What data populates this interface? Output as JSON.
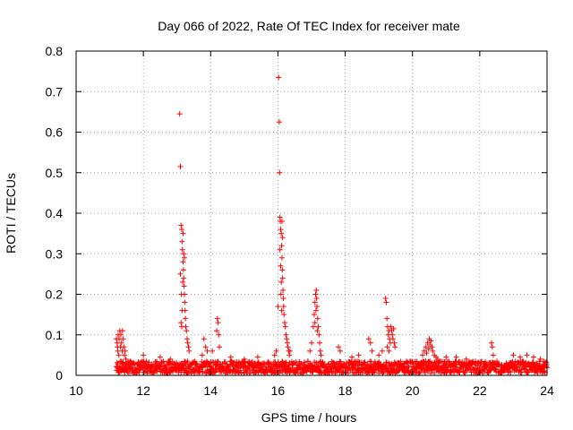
{
  "chart_data": {
    "type": "scatter",
    "title": "Day 066 of 2022, Rate Of TEC Index for receiver mate",
    "xlabel": "GPS time / hours",
    "ylabel": "ROTI / TECUs",
    "xlim": [
      10,
      24
    ],
    "ylim": [
      0,
      0.8
    ],
    "xticks": [
      10,
      12,
      14,
      16,
      18,
      20,
      22,
      24
    ],
    "yticks": [
      0,
      0.1,
      0.2,
      0.3,
      0.4,
      0.5,
      0.6,
      0.7,
      0.8
    ],
    "xtick_labels": [
      "10",
      "12",
      "14",
      "16",
      "18",
      "20",
      "22",
      "24"
    ],
    "ytick_labels": [
      "0",
      "0.1",
      "0.2",
      "0.3",
      "0.4",
      "0.5",
      "0.6",
      "0.7",
      "0.8"
    ],
    "grid": true,
    "marker": "+",
    "series_color": "#ff0000",
    "baseline": {
      "x_start": 11.2,
      "x_end": 24.0,
      "count": 1400,
      "y_min": 0.005,
      "y_max": 0.035
    },
    "points": [
      [
        11.2,
        0.09
      ],
      [
        11.22,
        0.08
      ],
      [
        11.23,
        0.07
      ],
      [
        11.24,
        0.06
      ],
      [
        11.25,
        0.1
      ],
      [
        11.27,
        0.05
      ],
      [
        11.28,
        0.09
      ],
      [
        11.3,
        0.11
      ],
      [
        11.32,
        0.07
      ],
      [
        11.33,
        0.1
      ],
      [
        11.35,
        0.08
      ],
      [
        11.37,
        0.06
      ],
      [
        11.38,
        0.11
      ],
      [
        11.4,
        0.09
      ],
      [
        11.42,
        0.07
      ],
      [
        11.44,
        0.05
      ],
      [
        11.46,
        0.06
      ],
      [
        11.48,
        0.04
      ],
      [
        13.08,
        0.645
      ],
      [
        13.1,
        0.515
      ],
      [
        13.12,
        0.37
      ],
      [
        13.14,
        0.36
      ],
      [
        13.15,
        0.33
      ],
      [
        13.16,
        0.31
      ],
      [
        13.18,
        0.28
      ],
      [
        13.19,
        0.26
      ],
      [
        13.2,
        0.24
      ],
      [
        13.21,
        0.22
      ],
      [
        13.22,
        0.2
      ],
      [
        13.23,
        0.18
      ],
      [
        13.24,
        0.16
      ],
      [
        13.25,
        0.14
      ],
      [
        13.26,
        0.12
      ],
      [
        13.28,
        0.11
      ],
      [
        13.3,
        0.09
      ],
      [
        13.1,
        0.25
      ],
      [
        13.13,
        0.2
      ],
      [
        13.15,
        0.16
      ],
      [
        13.12,
        0.13
      ],
      [
        13.18,
        0.35
      ],
      [
        13.2,
        0.3
      ],
      [
        13.22,
        0.29
      ],
      [
        13.17,
        0.23
      ],
      [
        13.14,
        0.12
      ],
      [
        13.32,
        0.08
      ],
      [
        13.34,
        0.07
      ],
      [
        13.36,
        0.06
      ],
      [
        14.18,
        0.11
      ],
      [
        14.2,
        0.14
      ],
      [
        14.22,
        0.13
      ],
      [
        14.24,
        0.1
      ],
      [
        14.26,
        0.07
      ],
      [
        13.8,
        0.09
      ],
      [
        13.85,
        0.07
      ],
      [
        13.9,
        0.06
      ],
      [
        13.75,
        0.05
      ],
      [
        14.05,
        0.06
      ],
      [
        15.9,
        0.05
      ],
      [
        15.95,
        0.06
      ],
      [
        16.0,
        0.17
      ],
      [
        16.02,
        0.735
      ],
      [
        16.04,
        0.625
      ],
      [
        16.05,
        0.5
      ],
      [
        16.06,
        0.39
      ],
      [
        16.07,
        0.38
      ],
      [
        16.08,
        0.36
      ],
      [
        16.1,
        0.35
      ],
      [
        16.11,
        0.32
      ],
      [
        16.12,
        0.29
      ],
      [
        16.13,
        0.26
      ],
      [
        16.14,
        0.24
      ],
      [
        16.15,
        0.21
      ],
      [
        16.16,
        0.19
      ],
      [
        16.17,
        0.17
      ],
      [
        16.18,
        0.15
      ],
      [
        16.2,
        0.13
      ],
      [
        16.22,
        0.12
      ],
      [
        16.24,
        0.1
      ],
      [
        16.26,
        0.09
      ],
      [
        16.28,
        0.08
      ],
      [
        16.3,
        0.07
      ],
      [
        16.32,
        0.06
      ],
      [
        16.08,
        0.27
      ],
      [
        16.1,
        0.23
      ],
      [
        16.12,
        0.38
      ],
      [
        16.14,
        0.34
      ],
      [
        16.06,
        0.31
      ],
      [
        16.09,
        0.2
      ],
      [
        16.11,
        0.16
      ],
      [
        16.34,
        0.05
      ],
      [
        16.36,
        0.06
      ],
      [
        16.95,
        0.06
      ],
      [
        17.0,
        0.08
      ],
      [
        17.05,
        0.12
      ],
      [
        17.08,
        0.15
      ],
      [
        17.1,
        0.18
      ],
      [
        17.12,
        0.2
      ],
      [
        17.14,
        0.21
      ],
      [
        17.15,
        0.19
      ],
      [
        17.16,
        0.17
      ],
      [
        17.18,
        0.14
      ],
      [
        17.2,
        0.12
      ],
      [
        17.22,
        0.1
      ],
      [
        17.24,
        0.08
      ],
      [
        17.26,
        0.06
      ],
      [
        17.1,
        0.13
      ],
      [
        17.13,
        0.16
      ],
      [
        17.17,
        0.11
      ],
      [
        17.28,
        0.05
      ],
      [
        17.8,
        0.07
      ],
      [
        17.85,
        0.06
      ],
      [
        18.7,
        0.09
      ],
      [
        18.75,
        0.08
      ],
      [
        18.8,
        0.06
      ],
      [
        19.0,
        0.05
      ],
      [
        19.1,
        0.06
      ],
      [
        19.2,
        0.19
      ],
      [
        19.22,
        0.18
      ],
      [
        19.24,
        0.14
      ],
      [
        19.26,
        0.12
      ],
      [
        19.28,
        0.1
      ],
      [
        19.3,
        0.11
      ],
      [
        19.32,
        0.09
      ],
      [
        19.34,
        0.08
      ],
      [
        19.36,
        0.12
      ],
      [
        19.38,
        0.11
      ],
      [
        19.4,
        0.1
      ],
      [
        19.42,
        0.09
      ],
      [
        19.44,
        0.115
      ],
      [
        19.46,
        0.08
      ],
      [
        19.48,
        0.07
      ],
      [
        19.25,
        0.07
      ],
      [
        19.3,
        0.06
      ],
      [
        20.3,
        0.05
      ],
      [
        20.35,
        0.06
      ],
      [
        20.4,
        0.07
      ],
      [
        20.45,
        0.08
      ],
      [
        20.5,
        0.09
      ],
      [
        20.52,
        0.075
      ],
      [
        20.55,
        0.085
      ],
      [
        20.58,
        0.07
      ],
      [
        20.6,
        0.06
      ],
      [
        20.65,
        0.05
      ],
      [
        20.7,
        0.045
      ],
      [
        20.75,
        0.04
      ],
      [
        20.48,
        0.065
      ],
      [
        20.42,
        0.055
      ],
      [
        22.35,
        0.08
      ],
      [
        22.37,
        0.07
      ],
      [
        22.4,
        0.05
      ],
      [
        21.3,
        0.045
      ],
      [
        21.6,
        0.04
      ],
      [
        23.0,
        0.05
      ],
      [
        23.2,
        0.045
      ],
      [
        23.4,
        0.05
      ],
      [
        23.6,
        0.045
      ],
      [
        23.8,
        0.04
      ],
      [
        23.9,
        0.035
      ],
      [
        12.0,
        0.05
      ],
      [
        12.5,
        0.045
      ],
      [
        12.8,
        0.04
      ],
      [
        14.6,
        0.045
      ],
      [
        15.0,
        0.04
      ],
      [
        15.4,
        0.045
      ],
      [
        18.2,
        0.045
      ],
      [
        18.4,
        0.05
      ],
      [
        21.0,
        0.045
      ]
    ]
  }
}
